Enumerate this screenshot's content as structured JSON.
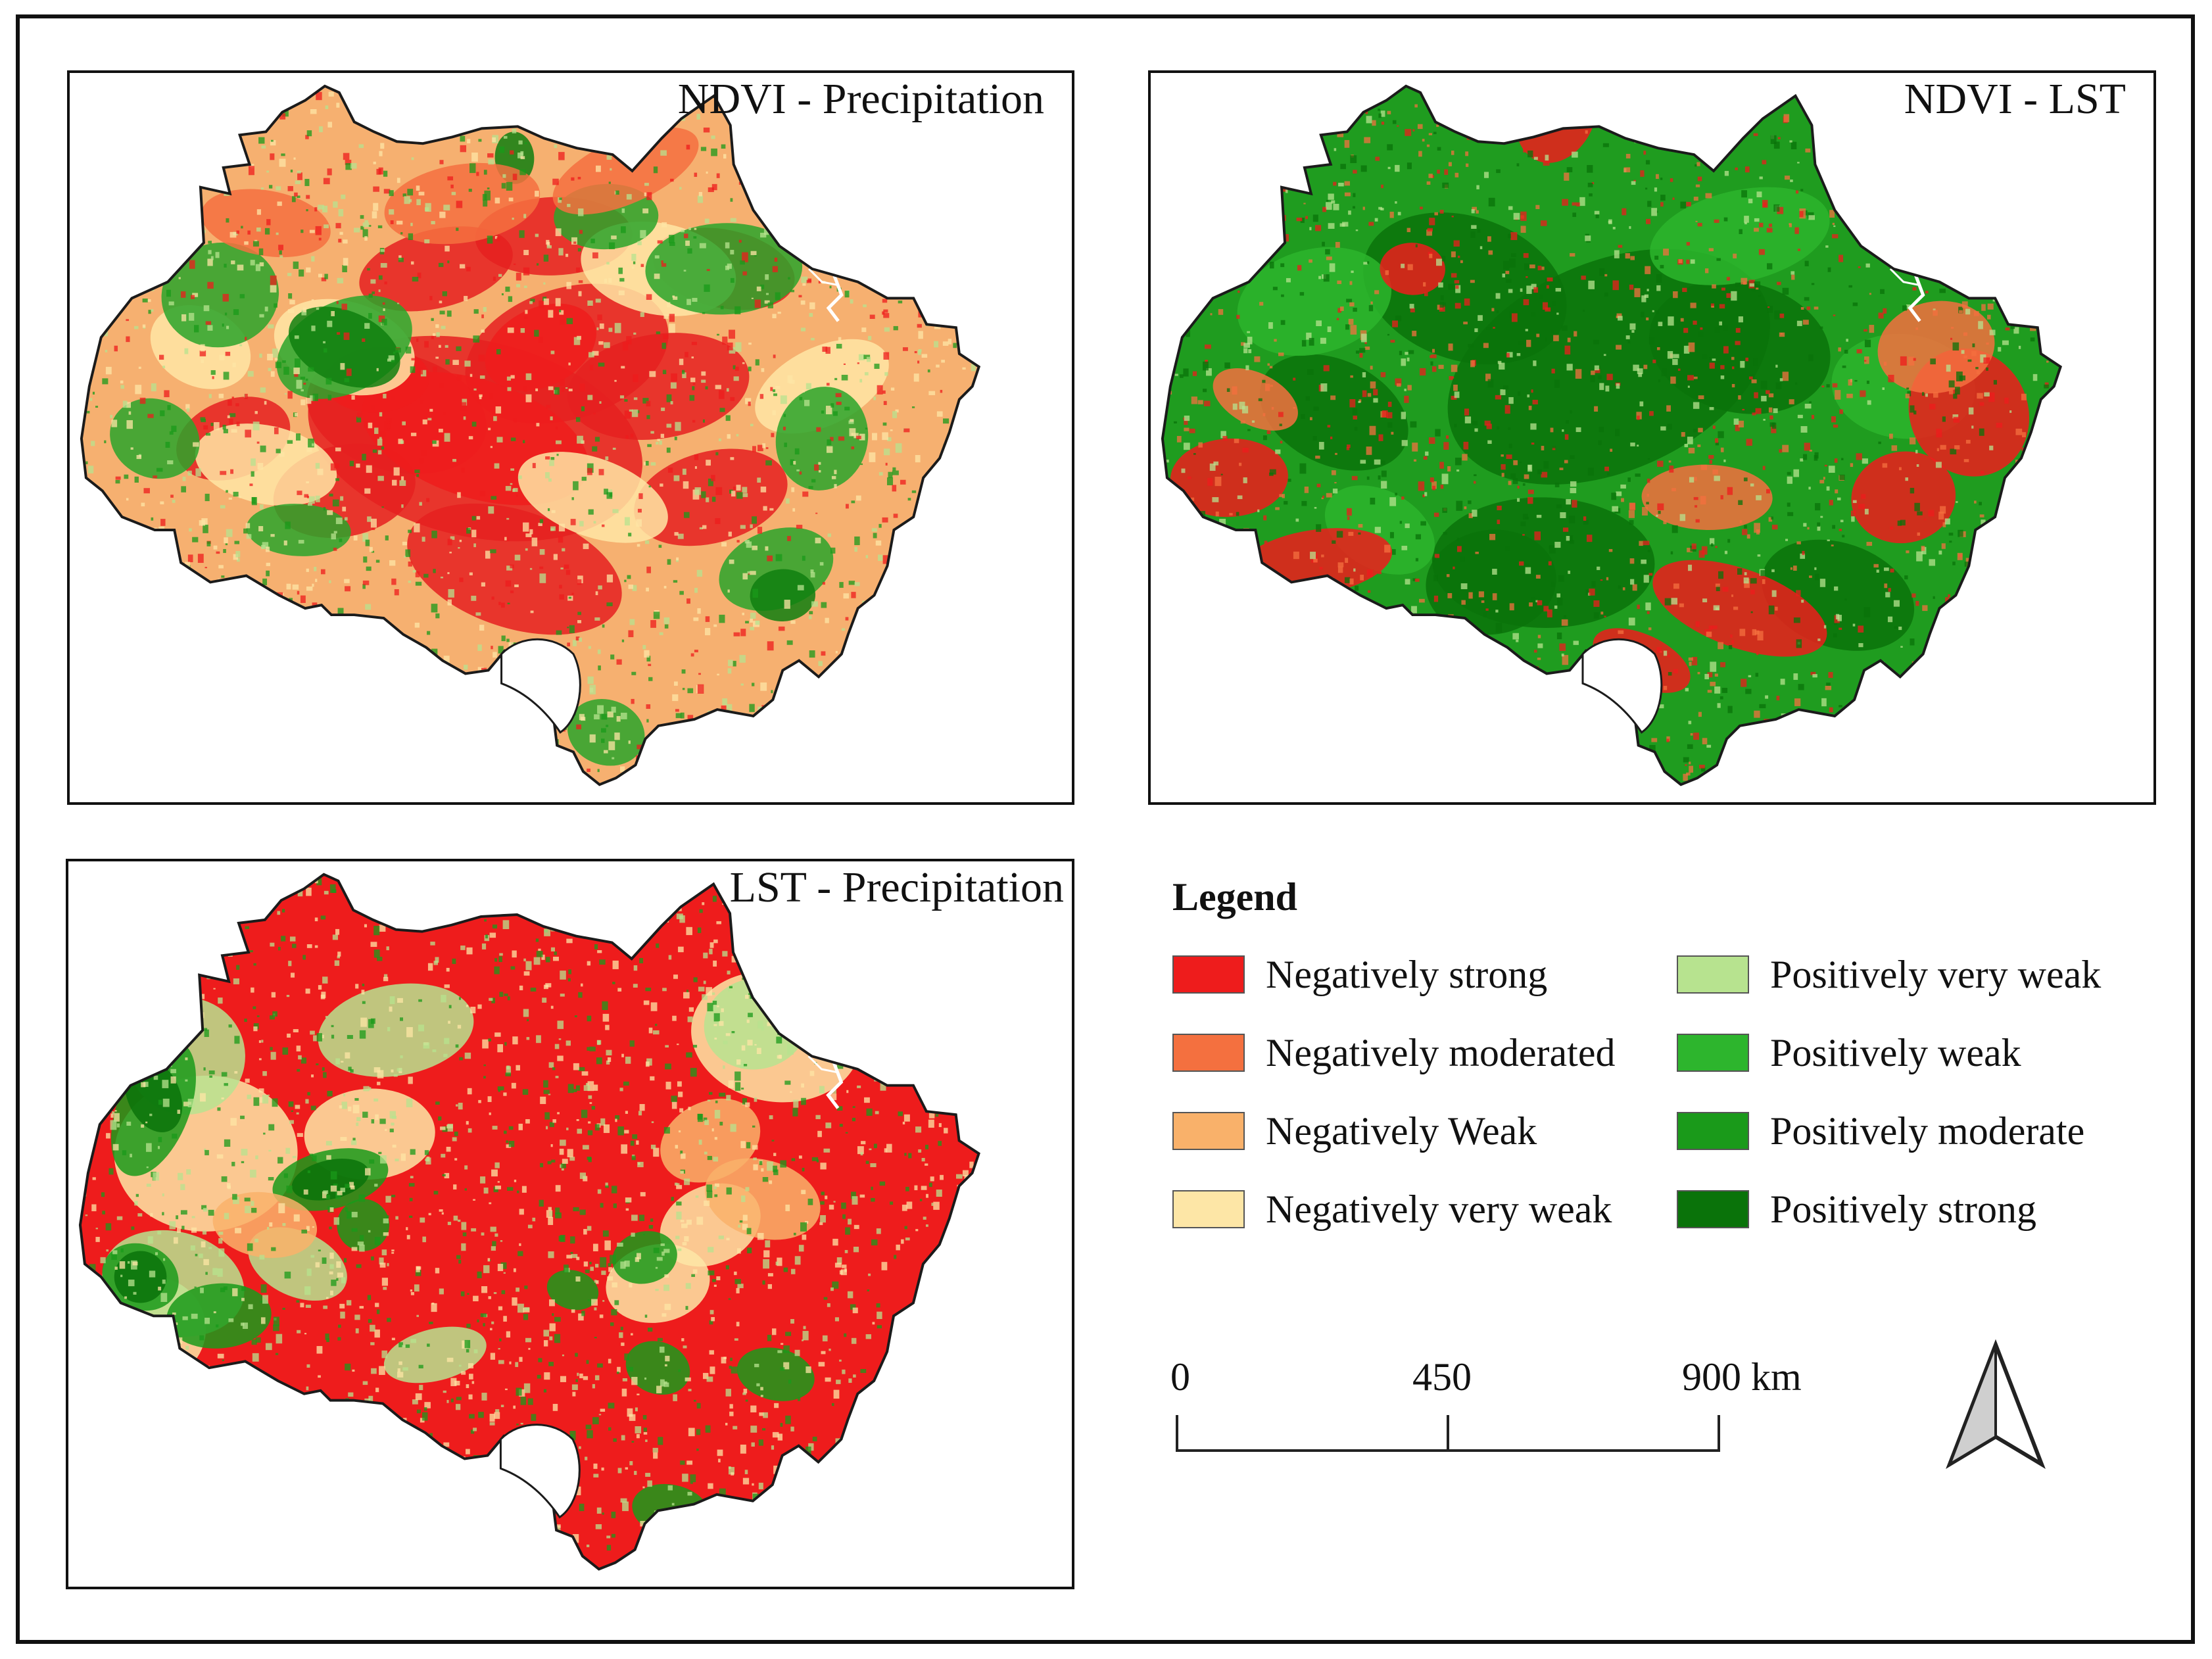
{
  "panels": [
    {
      "title": "NDVI - Precipitation",
      "dominant": "mixed-red"
    },
    {
      "title": "NDVI - LST",
      "dominant": "green"
    },
    {
      "title": "LST - Precipitation",
      "dominant": "red"
    }
  ],
  "legend": {
    "title": "Legend",
    "items": [
      {
        "label": "Negatively strong",
        "color": "#ee1c1c"
      },
      {
        "label": "Negatively moderated",
        "color": "#f4703f"
      },
      {
        "label": "Negatively Weak",
        "color": "#f9b16a"
      },
      {
        "label": "Negatively very weak",
        "color": "#fde6a6"
      },
      {
        "label": "Positively very weak",
        "color": "#b7e38f"
      },
      {
        "label": "Positively weak",
        "color": "#2db52d"
      },
      {
        "label": "Positively moderate",
        "color": "#1a9a1a"
      },
      {
        "label": "Positively strong",
        "color": "#0a730a"
      }
    ]
  },
  "scale": {
    "labels": [
      "0",
      "450",
      "900 km"
    ]
  },
  "north_arrow": {
    "icon": "north-arrow-icon"
  }
}
